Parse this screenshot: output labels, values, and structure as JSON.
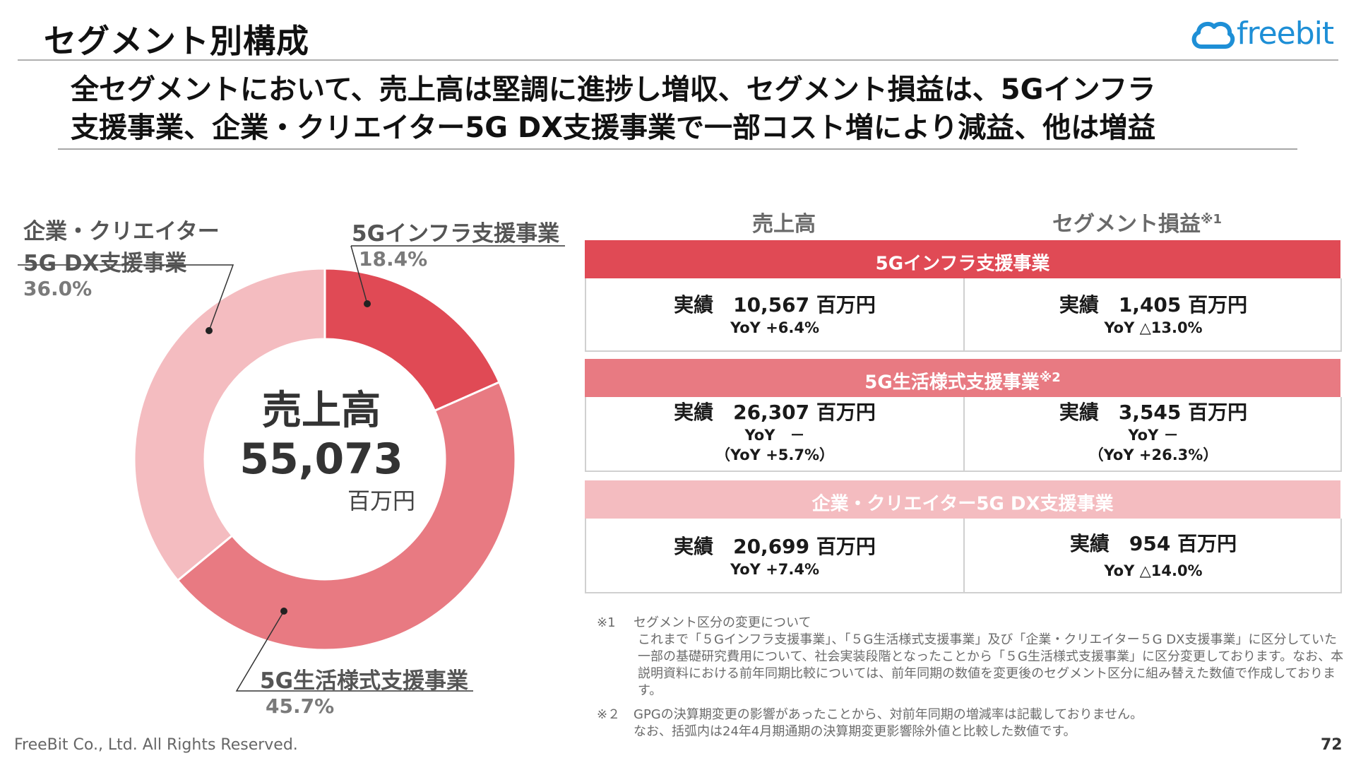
{
  "header": {
    "title": "セグメント別構成",
    "logo_text": "freebit"
  },
  "headline": {
    "line1": "全セグメントにおいて、売上高は堅調に進捗し増収、セグメント損益は、5Gインフラ",
    "line2": "支援事業、企業・クリエイター5G DX支援事業で一部コスト増により減益、他は増益"
  },
  "donut_center": {
    "label": "売上高",
    "value": "55,073",
    "unit": "百万円"
  },
  "chart_data": {
    "type": "pie",
    "categories": [
      "5Gインフラ支援事業",
      "5G生活様式支援事業",
      "企業・クリエイター5G DX支援事業"
    ],
    "values": [
      18.4,
      45.7,
      36.0
    ],
    "labels": [
      "18.4%",
      "45.7%",
      "36.0%"
    ],
    "colors": [
      "#e04a55",
      "#e87a82",
      "#f4bcc0"
    ],
    "donut": true,
    "legend_placement": "outside-labels-with-leader-lines",
    "legend_names": [
      "5Gインフラ支援事業",
      "5G生活様式支援事業",
      "企業・クリエイター"
    ],
    "legend_names_line2": [
      "",
      "",
      "5G DX支援事業"
    ]
  },
  "table": {
    "col_sales": "売上高",
    "col_profit": "セグメント損益",
    "col_profit_mark": "※1",
    "rows": [
      {
        "segment": "5Gインフラ支援事業",
        "segment_mark": "",
        "band_color": "#e04a55",
        "sales_main": "実績　10,567 百万円",
        "sales_sub1": "YoY +6.4%",
        "sales_sub2": "",
        "profit_main": "実績　1,405 百万円",
        "profit_sub1": "YoY △13.0%",
        "profit_sub2": ""
      },
      {
        "segment": "5G生活様式支援事業",
        "segment_mark": "※2",
        "band_color": "#e87a82",
        "sales_main": "実績　26,307 百万円",
        "sales_sub1": "YoY　－",
        "sales_sub2": "（YoY +5.7%）",
        "profit_main": "実績　3,545 百万円",
        "profit_sub1": "YoY －",
        "profit_sub2": "（YoY +26.3%）"
      },
      {
        "segment": "企業・クリエイター5G DX支援事業",
        "segment_mark": "",
        "band_color": "#f4bcc0",
        "sales_main": "実績　20,699 百万円",
        "sales_sub1": "YoY +7.4%",
        "sales_sub2": "",
        "profit_main": "実績　954 百万円",
        "profit_sub1": "YoY △14.0%",
        "profit_sub2": ""
      }
    ]
  },
  "notes": [
    {
      "mark": "※1",
      "heading": "セグメント区分の変更について",
      "body": "これまで「５Gインフラ支援事業」、「５G生活様式支援事業」及び「企業・クリエイター５G DX支援事業」に区分していた一部の基礎研究費用について、社会実装段階となったことから「５G生活様式支援事業」に区分変更しております。なお、本説明資料における前年同期比較については、前年同期の数値を変更後のセグメント区分に組み替えた数値で作成しております。"
    },
    {
      "mark": "※２",
      "heading": "GPGの決算期変更の影響があったことから、対前年同期の増減率は記載しておりません。",
      "body": "なお、括弧内は24年4月期通期の決算期変更影響除外値と比較した数値です。"
    }
  ],
  "footer": {
    "copyright": "FreeBit Co., Ltd. All Rights Reserved.",
    "page": "72"
  }
}
